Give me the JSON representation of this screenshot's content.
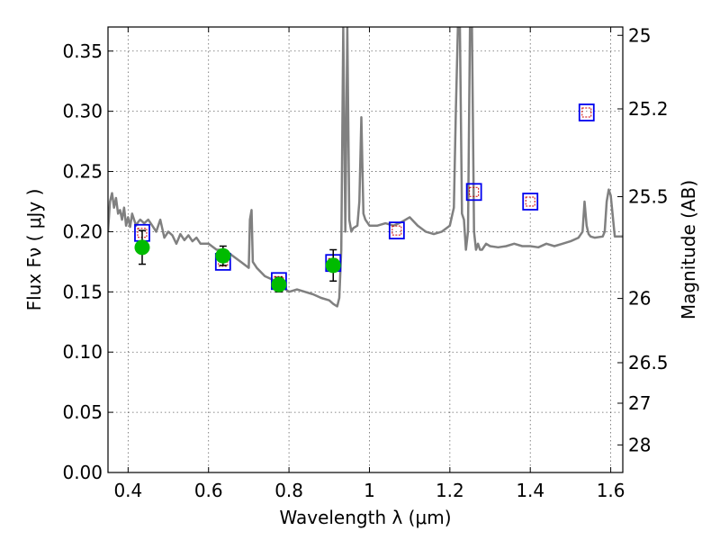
{
  "chart_data": {
    "type": "scatter",
    "xlabel": "Wavelength  λ (μm)",
    "ylabel": "Flux  Fν  ( μJy )",
    "y2label": "Magnitude (AB)",
    "xlim": [
      0.35,
      1.63
    ],
    "ylim": [
      0.0,
      0.37
    ],
    "xticks": [
      0.4,
      0.6,
      0.8,
      1.0,
      1.2,
      1.4,
      1.6
    ],
    "xtick_labels": [
      "0.4",
      "0.6",
      "0.8",
      "1",
      "1.2",
      "1.4",
      "1.6"
    ],
    "yticks": [
      0.0,
      0.05,
      0.1,
      0.15,
      0.2,
      0.25,
      0.3,
      0.35
    ],
    "ytick_labels": [
      "0.00",
      "0.05",
      "0.10",
      "0.15",
      "0.20",
      "0.25",
      "0.30",
      "0.35"
    ],
    "y2ticks": [
      {
        "label": "25",
        "mag": 25.0
      },
      {
        "label": "25.2",
        "mag": 25.2
      },
      {
        "label": "25.5",
        "mag": 25.5
      },
      {
        "label": "26",
        "mag": 26.0
      },
      {
        "label": "26.5",
        "mag": 26.5
      },
      {
        "label": "27",
        "mag": 27.0
      },
      {
        "label": "28",
        "mag": 28.0
      }
    ],
    "grid": true,
    "colors": {
      "spectrum": "#808080",
      "observed": "#00bb00",
      "model_box": "#0000ee",
      "model_inner": "#cc0000",
      "errorbar": "#000000"
    },
    "spectrum": {
      "x": [
        0.35,
        0.355,
        0.36,
        0.365,
        0.37,
        0.375,
        0.38,
        0.385,
        0.39,
        0.395,
        0.4,
        0.405,
        0.41,
        0.415,
        0.42,
        0.425,
        0.43,
        0.44,
        0.45,
        0.46,
        0.47,
        0.48,
        0.49,
        0.5,
        0.51,
        0.52,
        0.53,
        0.54,
        0.55,
        0.56,
        0.57,
        0.58,
        0.6,
        0.62,
        0.64,
        0.66,
        0.68,
        0.7,
        0.703,
        0.707,
        0.71,
        0.72,
        0.74,
        0.76,
        0.78,
        0.8,
        0.82,
        0.84,
        0.86,
        0.88,
        0.9,
        0.91,
        0.92,
        0.925,
        0.93,
        0.935,
        0.94,
        0.945,
        0.95,
        0.955,
        0.96,
        0.97,
        0.975,
        0.98,
        0.985,
        0.99,
        1.0,
        1.02,
        1.04,
        1.06,
        1.08,
        1.1,
        1.12,
        1.14,
        1.16,
        1.18,
        1.2,
        1.21,
        1.215,
        1.22,
        1.225,
        1.23,
        1.235,
        1.24,
        1.245,
        1.25,
        1.255,
        1.26,
        1.265,
        1.27,
        1.275,
        1.28,
        1.29,
        1.3,
        1.32,
        1.34,
        1.36,
        1.38,
        1.4,
        1.42,
        1.44,
        1.46,
        1.48,
        1.5,
        1.52,
        1.53,
        1.535,
        1.54,
        1.545,
        1.55,
        1.56,
        1.58,
        1.585,
        1.59,
        1.595,
        1.6,
        1.61,
        1.63
      ],
      "y": [
        0.2,
        0.225,
        0.232,
        0.22,
        0.228,
        0.215,
        0.218,
        0.21,
        0.22,
        0.205,
        0.212,
        0.204,
        0.215,
        0.21,
        0.205,
        0.208,
        0.21,
        0.207,
        0.21,
        0.205,
        0.2,
        0.21,
        0.195,
        0.2,
        0.197,
        0.19,
        0.198,
        0.193,
        0.197,
        0.192,
        0.195,
        0.19,
        0.19,
        0.185,
        0.185,
        0.18,
        0.175,
        0.17,
        0.21,
        0.218,
        0.175,
        0.17,
        0.163,
        0.16,
        0.155,
        0.15,
        0.152,
        0.15,
        0.148,
        0.145,
        0.143,
        0.14,
        0.138,
        0.145,
        0.185,
        0.37,
        0.2,
        0.37,
        0.21,
        0.2,
        0.203,
        0.205,
        0.225,
        0.295,
        0.215,
        0.21,
        0.205,
        0.205,
        0.207,
        0.205,
        0.208,
        0.212,
        0.205,
        0.2,
        0.198,
        0.2,
        0.205,
        0.22,
        0.3,
        0.37,
        0.37,
        0.215,
        0.21,
        0.185,
        0.2,
        0.37,
        0.37,
        0.2,
        0.185,
        0.19,
        0.185,
        0.185,
        0.19,
        0.188,
        0.187,
        0.188,
        0.19,
        0.188,
        0.188,
        0.187,
        0.19,
        0.188,
        0.19,
        0.192,
        0.195,
        0.2,
        0.225,
        0.205,
        0.198,
        0.196,
        0.195,
        0.196,
        0.2,
        0.225,
        0.235,
        0.23,
        0.196,
        0.196
      ]
    },
    "observed": [
      {
        "x": 0.435,
        "y": 0.187,
        "err": 0.014
      },
      {
        "x": 0.636,
        "y": 0.18,
        "err": 0.008
      },
      {
        "x": 0.775,
        "y": 0.156,
        "err": 0.006
      },
      {
        "x": 0.91,
        "y": 0.172,
        "err": 0.013
      }
    ],
    "model_points": [
      {
        "x": 0.435,
        "y": 0.199
      },
      {
        "x": 0.636,
        "y": 0.175
      },
      {
        "x": 0.775,
        "y": 0.159
      },
      {
        "x": 0.91,
        "y": 0.174
      },
      {
        "x": 1.068,
        "y": 0.201
      },
      {
        "x": 1.26,
        "y": 0.233
      },
      {
        "x": 1.4,
        "y": 0.225
      },
      {
        "x": 1.54,
        "y": 0.299
      }
    ]
  }
}
